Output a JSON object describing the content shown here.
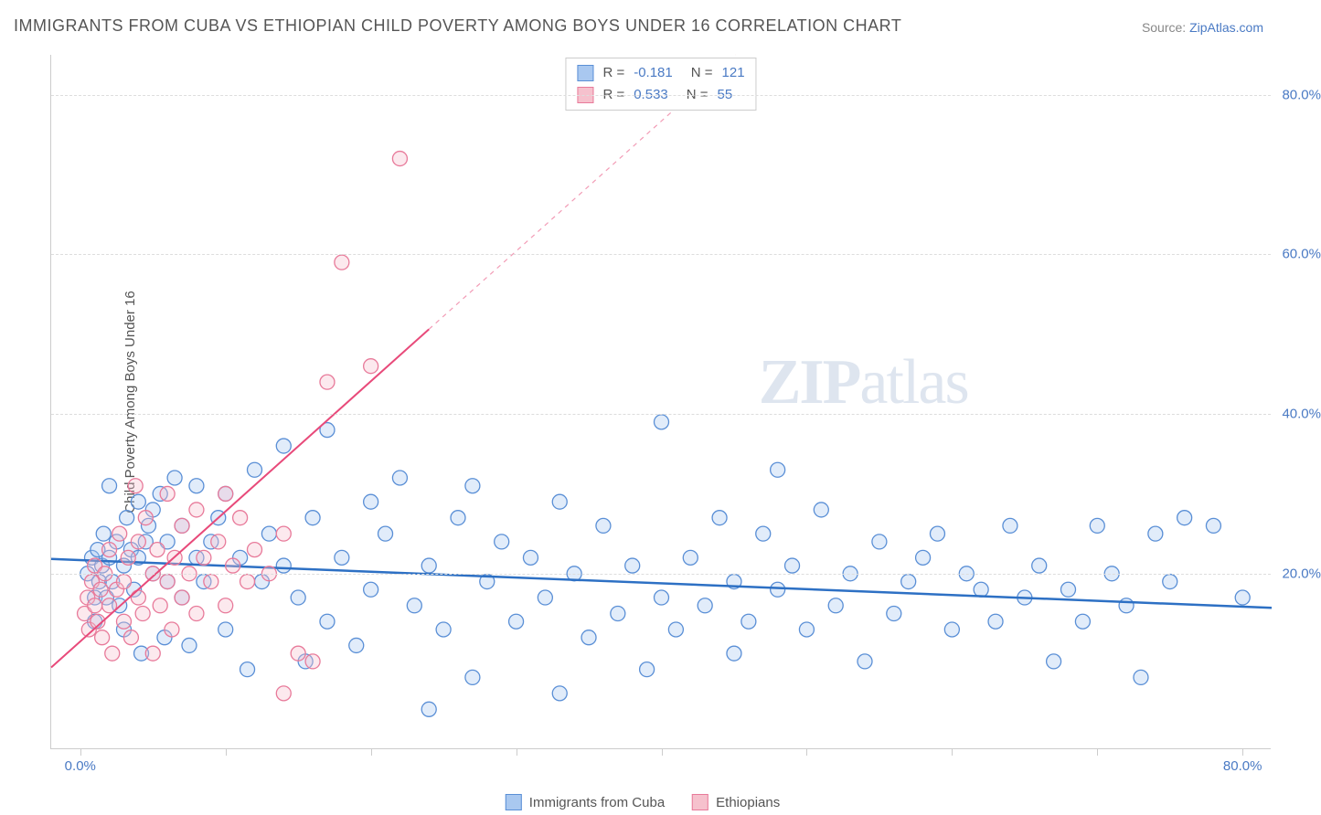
{
  "title": "IMMIGRANTS FROM CUBA VS ETHIOPIAN CHILD POVERTY AMONG BOYS UNDER 16 CORRELATION CHART",
  "source_label": "Source:",
  "source_name": "ZipAtlas.com",
  "y_axis_label": "Child Poverty Among Boys Under 16",
  "watermark": "ZIPatlas",
  "chart": {
    "type": "scatter",
    "x_domain": [
      -2,
      82
    ],
    "y_domain": [
      -2,
      85
    ],
    "background_color": "#ffffff",
    "grid_color": "#dddddd",
    "axis_color": "#cccccc",
    "tick_label_color": "#4a7ac4",
    "tick_fontsize": 15,
    "axis_label_fontsize": 15,
    "y_gridlines": [
      20,
      40,
      60,
      80
    ],
    "y_tick_labels": [
      "20.0%",
      "40.0%",
      "60.0%",
      "80.0%"
    ],
    "x_ticks": [
      0,
      10,
      20,
      30,
      40,
      50,
      60,
      70,
      80
    ],
    "x_tick_labels_shown": {
      "0": "0.0%",
      "80": "80.0%"
    },
    "marker_radius": 8,
    "marker_stroke_width": 1.3,
    "marker_fill_opacity": 0.35,
    "series": [
      {
        "name": "Immigrants from Cuba",
        "legend_label": "Immigrants from Cuba",
        "color_fill": "#a9c8f0",
        "color_stroke": "#5a8fd6",
        "R": "-0.181",
        "N": "121",
        "trend": {
          "slope": -0.073,
          "intercept": 21.7,
          "color": "#2d70c4",
          "width": 2.5,
          "dash_after_x": null
        },
        "points": [
          [
            0.5,
            20
          ],
          [
            0.8,
            22
          ],
          [
            1,
            17
          ],
          [
            1,
            14
          ],
          [
            1.2,
            23
          ],
          [
            1.3,
            19
          ],
          [
            1.5,
            21
          ],
          [
            1.6,
            25
          ],
          [
            1.8,
            17
          ],
          [
            2,
            22
          ],
          [
            2,
            31
          ],
          [
            2.2,
            19
          ],
          [
            2.5,
            24
          ],
          [
            2.7,
            16
          ],
          [
            3,
            13
          ],
          [
            3,
            21
          ],
          [
            3.2,
            27
          ],
          [
            3.5,
            23
          ],
          [
            3.7,
            18
          ],
          [
            4,
            22
          ],
          [
            4,
            29
          ],
          [
            4.2,
            10
          ],
          [
            4.5,
            24
          ],
          [
            4.7,
            26
          ],
          [
            5,
            20
          ],
          [
            5,
            28
          ],
          [
            5.5,
            30
          ],
          [
            5.8,
            12
          ],
          [
            6,
            24
          ],
          [
            6,
            19
          ],
          [
            6.5,
            32
          ],
          [
            7,
            26
          ],
          [
            7,
            17
          ],
          [
            7.5,
            11
          ],
          [
            8,
            22
          ],
          [
            8,
            31
          ],
          [
            8.5,
            19
          ],
          [
            9,
            24
          ],
          [
            9.5,
            27
          ],
          [
            10,
            13
          ],
          [
            10,
            30
          ],
          [
            11,
            22
          ],
          [
            11.5,
            8
          ],
          [
            12,
            33
          ],
          [
            12.5,
            19
          ],
          [
            13,
            25
          ],
          [
            14,
            36
          ],
          [
            14,
            21
          ],
          [
            15,
            17
          ],
          [
            15.5,
            9
          ],
          [
            16,
            27
          ],
          [
            17,
            14
          ],
          [
            17,
            38
          ],
          [
            18,
            22
          ],
          [
            19,
            11
          ],
          [
            20,
            29
          ],
          [
            20,
            18
          ],
          [
            21,
            25
          ],
          [
            22,
            32
          ],
          [
            23,
            16
          ],
          [
            24,
            21
          ],
          [
            24,
            3
          ],
          [
            25,
            13
          ],
          [
            26,
            27
          ],
          [
            27,
            31
          ],
          [
            27,
            7
          ],
          [
            28,
            19
          ],
          [
            29,
            24
          ],
          [
            30,
            14
          ],
          [
            31,
            22
          ],
          [
            32,
            17
          ],
          [
            33,
            5
          ],
          [
            33,
            29
          ],
          [
            34,
            20
          ],
          [
            35,
            12
          ],
          [
            36,
            26
          ],
          [
            37,
            15
          ],
          [
            38,
            21
          ],
          [
            39,
            8
          ],
          [
            40,
            17
          ],
          [
            40,
            39
          ],
          [
            41,
            13
          ],
          [
            42,
            22
          ],
          [
            43,
            16
          ],
          [
            44,
            27
          ],
          [
            45,
            19
          ],
          [
            45,
            10
          ],
          [
            46,
            14
          ],
          [
            47,
            25
          ],
          [
            48,
            18
          ],
          [
            48,
            33
          ],
          [
            49,
            21
          ],
          [
            50,
            13
          ],
          [
            51,
            28
          ],
          [
            52,
            16
          ],
          [
            53,
            20
          ],
          [
            54,
            9
          ],
          [
            55,
            24
          ],
          [
            56,
            15
          ],
          [
            57,
            19
          ],
          [
            58,
            22
          ],
          [
            59,
            25
          ],
          [
            60,
            13
          ],
          [
            61,
            20
          ],
          [
            62,
            18
          ],
          [
            63,
            14
          ],
          [
            64,
            26
          ],
          [
            65,
            17
          ],
          [
            66,
            21
          ],
          [
            67,
            9
          ],
          [
            68,
            18
          ],
          [
            69,
            14
          ],
          [
            70,
            26
          ],
          [
            71,
            20
          ],
          [
            72,
            16
          ],
          [
            73,
            7
          ],
          [
            74,
            25
          ],
          [
            75,
            19
          ],
          [
            76,
            27
          ],
          [
            78,
            26
          ],
          [
            80,
            17
          ]
        ]
      },
      {
        "name": "Ethiopians",
        "legend_label": "Ethiopians",
        "color_fill": "#f6c1cd",
        "color_stroke": "#e87a9a",
        "R": "0.533",
        "N": "55",
        "trend": {
          "slope": 1.63,
          "intercept": 11.5,
          "color": "#e84a7a",
          "width": 2,
          "dash_after_x": 24
        },
        "points": [
          [
            0.3,
            15
          ],
          [
            0.5,
            17
          ],
          [
            0.6,
            13
          ],
          [
            0.8,
            19
          ],
          [
            1,
            16
          ],
          [
            1,
            21
          ],
          [
            1.2,
            14
          ],
          [
            1.4,
            18
          ],
          [
            1.5,
            12
          ],
          [
            1.7,
            20
          ],
          [
            2,
            23
          ],
          [
            2,
            16
          ],
          [
            2.2,
            10
          ],
          [
            2.5,
            18
          ],
          [
            2.7,
            25
          ],
          [
            3,
            14
          ],
          [
            3,
            19
          ],
          [
            3.3,
            22
          ],
          [
            3.5,
            12
          ],
          [
            3.8,
            31
          ],
          [
            4,
            17
          ],
          [
            4,
            24
          ],
          [
            4.3,
            15
          ],
          [
            4.5,
            27
          ],
          [
            5,
            20
          ],
          [
            5,
            10
          ],
          [
            5.3,
            23
          ],
          [
            5.5,
            16
          ],
          [
            6,
            19
          ],
          [
            6,
            30
          ],
          [
            6.3,
            13
          ],
          [
            6.5,
            22
          ],
          [
            7,
            17
          ],
          [
            7,
            26
          ],
          [
            7.5,
            20
          ],
          [
            8,
            28
          ],
          [
            8,
            15
          ],
          [
            8.5,
            22
          ],
          [
            9,
            19
          ],
          [
            9.5,
            24
          ],
          [
            10,
            30
          ],
          [
            10,
            16
          ],
          [
            10.5,
            21
          ],
          [
            11,
            27
          ],
          [
            11.5,
            19
          ],
          [
            12,
            23
          ],
          [
            13,
            20
          ],
          [
            14,
            5
          ],
          [
            15,
            10
          ],
          [
            16,
            9
          ],
          [
            17,
            44
          ],
          [
            18,
            59
          ],
          [
            20,
            46
          ],
          [
            22,
            72
          ],
          [
            14,
            25
          ]
        ]
      }
    ]
  }
}
